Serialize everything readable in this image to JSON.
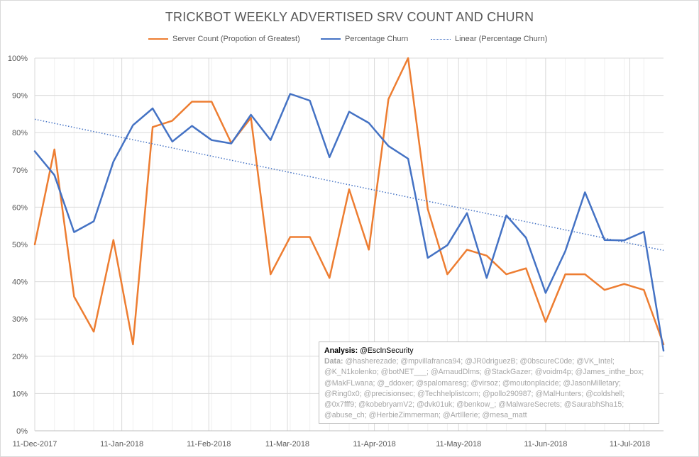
{
  "chart_data": {
    "type": "line",
    "title": "TRICKBOT WEEKLY ADVERTISED SRV COUNT AND CHURN",
    "x_start": "2017-12-11",
    "x_end": "2018-07-23",
    "x_tick_labels": [
      "11-Dec-2017",
      "11-Jan-2018",
      "11-Feb-2018",
      "11-Mar-2018",
      "11-Apr-2018",
      "11-May-2018",
      "11-Jun-2018",
      "11-Jul-2018"
    ],
    "ylim": [
      0,
      100
    ],
    "y_tick_labels": [
      "0%",
      "10%",
      "20%",
      "30%",
      "40%",
      "50%",
      "60%",
      "70%",
      "80%",
      "90%",
      "100%"
    ],
    "grid": true,
    "legend_position": "top",
    "series": [
      {
        "name": "Server Count (Propotion of Greatest)",
        "color": "#ed7d31",
        "style": "solid",
        "points": [
          [
            "2017-12-11",
            50
          ],
          [
            "2017-12-18",
            75.5
          ],
          [
            "2017-12-25",
            36
          ],
          [
            "2018-01-01",
            26.6
          ],
          [
            "2018-01-08",
            51.2
          ],
          [
            "2018-01-15",
            23.2
          ],
          [
            "2018-01-22",
            81.5
          ],
          [
            "2018-01-29",
            83.2
          ],
          [
            "2018-02-05",
            88.3
          ],
          [
            "2018-02-12",
            88.3
          ],
          [
            "2018-02-19",
            77.2
          ],
          [
            "2018-02-26",
            84
          ],
          [
            "2018-03-05",
            42
          ],
          [
            "2018-03-12",
            52
          ],
          [
            "2018-03-19",
            52
          ],
          [
            "2018-03-26",
            41
          ],
          [
            "2018-04-02",
            64.8
          ],
          [
            "2018-04-09",
            48.6
          ],
          [
            "2018-04-16",
            89
          ],
          [
            "2018-04-23",
            100
          ],
          [
            "2018-04-30",
            59.5
          ],
          [
            "2018-05-07",
            42
          ],
          [
            "2018-05-14",
            48.6
          ],
          [
            "2018-05-21",
            47
          ],
          [
            "2018-05-28",
            42
          ],
          [
            "2018-06-04",
            43.6
          ],
          [
            "2018-06-11",
            29.2
          ],
          [
            "2018-06-18",
            42
          ],
          [
            "2018-06-25",
            42
          ],
          [
            "2018-07-02",
            37.8
          ],
          [
            "2018-07-09",
            39.4
          ],
          [
            "2018-07-16",
            37.8
          ],
          [
            "2018-07-23",
            23.2
          ]
        ]
      },
      {
        "name": "Percentage Churn",
        "color": "#4472c4",
        "style": "solid",
        "points": [
          [
            "2017-12-11",
            75
          ],
          [
            "2017-12-18",
            68.6
          ],
          [
            "2017-12-25",
            53.3
          ],
          [
            "2018-01-01",
            56.2
          ],
          [
            "2018-01-08",
            72.2
          ],
          [
            "2018-01-15",
            82
          ],
          [
            "2018-01-22",
            86.5
          ],
          [
            "2018-01-29",
            77.6
          ],
          [
            "2018-02-05",
            81.8
          ],
          [
            "2018-02-12",
            78
          ],
          [
            "2018-02-19",
            77.1
          ],
          [
            "2018-02-26",
            84.8
          ],
          [
            "2018-03-05",
            78
          ],
          [
            "2018-03-12",
            90.4
          ],
          [
            "2018-03-19",
            88.6
          ],
          [
            "2018-03-26",
            73.4
          ],
          [
            "2018-04-02",
            85.6
          ],
          [
            "2018-04-09",
            82.6
          ],
          [
            "2018-04-16",
            76.4
          ],
          [
            "2018-04-23",
            73
          ],
          [
            "2018-04-30",
            46.4
          ],
          [
            "2018-05-07",
            49.8
          ],
          [
            "2018-05-14",
            58.4
          ],
          [
            "2018-05-21",
            41
          ],
          [
            "2018-05-28",
            57.8
          ],
          [
            "2018-06-04",
            51.8
          ],
          [
            "2018-06-11",
            37
          ],
          [
            "2018-06-18",
            48.2
          ],
          [
            "2018-06-25",
            64
          ],
          [
            "2018-07-02",
            51.2
          ],
          [
            "2018-07-09",
            51.1
          ],
          [
            "2018-07-16",
            53.4
          ],
          [
            "2018-07-23",
            21.5
          ]
        ]
      },
      {
        "name": "Linear (Percentage Churn)",
        "color": "#4472c4",
        "style": "dotted",
        "points": [
          [
            "2017-12-11",
            83.6
          ],
          [
            "2018-07-23",
            48.4
          ]
        ]
      }
    ]
  },
  "annotation": {
    "heading_label": "Analysis:",
    "heading_value": "@EscInSecurity",
    "data_label": "Data:",
    "data_text": "@hasherezade; @mpvillafranca94; @JR0driguezB; @0bscureC0de; @VK_Intel; @K_N1kolenko; @botNET___; @ArnaudDlms; @StackGazer; @voidm4p; @James_inthe_box; @MakFLwana; @_ddoxer; @spalomaresg; @virsoz; @moutonplacide; @JasonMilletary; @Ring0x0; @precisionsec; @Techhelplistcom; @pollo290987; @MalHunters; @coldshell; @0x7fff9; @kobebryamV2; @dvk01uk; @benkow_; @MalwareSecrets; @SaurabhSha15; @abuse_ch; @HerbieZimmerman; @ArtIllerie; @mesa_matt"
  }
}
